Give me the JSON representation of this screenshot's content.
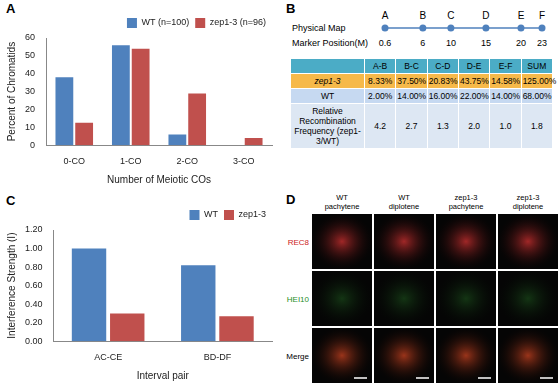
{
  "chart_data": [
    {
      "panel": "A",
      "type": "bar",
      "categories": [
        "0-CO",
        "1-CO",
        "2-CO",
        "3-CO"
      ],
      "series": [
        {
          "name": "WT (n=100)",
          "color": "#4f81bd",
          "values": [
            38,
            56,
            6,
            0
          ]
        },
        {
          "name": "zep1-3 (n=96)",
          "color": "#c0504d",
          "values": [
            12.5,
            54,
            29,
            4
          ]
        }
      ],
      "x_label": "Number of Meiotic COs",
      "y_label": "Percent of Chromatids",
      "ylim": [
        0,
        60
      ],
      "yticks": [
        0,
        10,
        20,
        30,
        40,
        50,
        60
      ],
      "grid": false,
      "legend": "top-right"
    },
    {
      "panel": "C",
      "type": "bar",
      "categories": [
        "AC-CE",
        "BD-DF"
      ],
      "series": [
        {
          "name": "WT",
          "color": "#4f81bd",
          "values": [
            1.0,
            0.82
          ]
        },
        {
          "name": "zep1-3",
          "color": "#c0504d",
          "values": [
            0.3,
            0.27
          ]
        }
      ],
      "x_label": "Interval pair",
      "y_label": "Interference Strength (I)",
      "ylim": [
        0,
        1.2
      ],
      "yticks": [
        {
          "value": 0,
          "label": "0.00"
        },
        {
          "value": 0.2,
          "label": "0.20"
        },
        {
          "value": 0.4,
          "label": "0.40"
        },
        {
          "value": 0.6,
          "label": "0.60"
        },
        {
          "value": 0.8,
          "label": "0.80"
        },
        {
          "value": 1.0,
          "label": "1.00"
        },
        {
          "value": 1.2,
          "label": "1.20"
        }
      ],
      "grid": false,
      "legend": "top-right"
    }
  ],
  "panel_b": {
    "panel": "B",
    "map": {
      "title": "Physical Map",
      "axis_label": "Marker Position(M)",
      "markers": [
        {
          "name": "A",
          "position": 0.6
        },
        {
          "name": "B",
          "position": 6
        },
        {
          "name": "C",
          "position": 10
        },
        {
          "name": "D",
          "position": 15
        },
        {
          "name": "E",
          "position": 20
        },
        {
          "name": "F",
          "position": 23
        }
      ]
    },
    "table": {
      "header": [
        "A-B",
        "B-C",
        "C-D",
        "D-E",
        "E-F",
        "SUM"
      ],
      "rows": [
        {
          "label": "zep1-3",
          "cells": [
            "8.33%",
            "37.50%",
            "20.83%",
            "43.75%",
            "14.58%",
            "125.00%"
          ]
        },
        {
          "label": "WT",
          "cells": [
            "2.00%",
            "14.00%",
            "16.00%",
            "22.00%",
            "14.00%",
            "68.00%"
          ]
        },
        {
          "label": "Relative Recombination Frequency (zep1-3/WT)",
          "cells": [
            "4.2",
            "2.7",
            "1.3",
            "2.0",
            "1.0",
            "1.8"
          ]
        }
      ]
    }
  },
  "panel_d": {
    "panel": "D",
    "columns": [
      "WT pachytene",
      "WT diplotene",
      "zep1-3 pachytene",
      "zep1-3 diplotene"
    ],
    "rows": [
      "REC8",
      "HEI10",
      "Merge"
    ]
  }
}
